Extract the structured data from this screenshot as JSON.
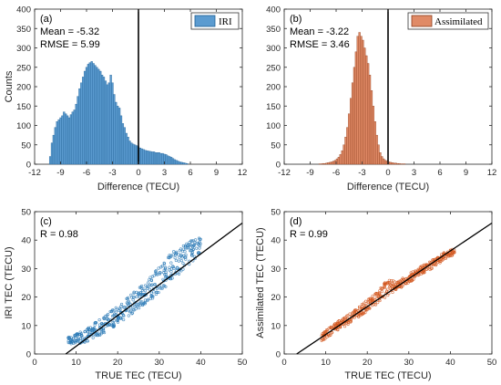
{
  "chart_data": [
    {
      "id": "a",
      "type": "bar",
      "panel_label": "(a)",
      "stats": [
        "Mean = -5.32",
        "RMSE = 5.99"
      ],
      "legend": "IRI",
      "legend_placement": "top-right",
      "color": "#5b9bd0",
      "edge_color": "#1f5f94",
      "xlabel": "Difference (TECU)",
      "ylabel": "Counts",
      "xlim": [
        -12,
        12
      ],
      "ylim": [
        0,
        400
      ],
      "xticks": [
        -12,
        -9,
        -6,
        -3,
        0,
        3,
        6,
        9,
        12
      ],
      "yticks": [
        0,
        50,
        100,
        150,
        200,
        250,
        300,
        350,
        400
      ],
      "bin_start": -10.3,
      "bin_width": 0.2,
      "values": [
        20,
        55,
        75,
        95,
        110,
        115,
        120,
        125,
        135,
        130,
        125,
        120,
        128,
        135,
        140,
        155,
        175,
        195,
        210,
        225,
        240,
        250,
        258,
        262,
        265,
        260,
        255,
        250,
        245,
        240,
        230,
        225,
        215,
        205,
        210,
        230,
        210,
        180,
        160,
        150,
        145,
        125,
        105,
        95,
        80,
        70,
        60,
        55,
        52,
        50,
        48,
        45,
        42,
        40,
        38,
        36,
        35,
        34,
        33,
        32,
        32,
        30,
        30,
        30,
        28,
        28,
        26,
        25,
        22,
        20,
        18,
        15,
        12,
        10,
        8,
        6,
        5,
        4,
        3,
        2
      ],
      "vline_x": 0,
      "grid": false
    },
    {
      "id": "b",
      "type": "bar",
      "panel_label": "(b)",
      "stats": [
        "Mean = -3.22",
        "RMSE = 3.46"
      ],
      "legend": "Assimilated",
      "legend_placement": "top-right",
      "color": "#e08a66",
      "edge_color": "#8c3c1c",
      "xlabel": "Difference (TECU)",
      "ylabel": "",
      "xlim": [
        -12,
        12
      ],
      "ylim": [
        0,
        400
      ],
      "xticks": [
        -12,
        -9,
        -6,
        -3,
        0,
        3,
        6,
        9,
        12
      ],
      "yticks": [
        0,
        50,
        100,
        150,
        200,
        250,
        300,
        350,
        400
      ],
      "bin_start": -8.0,
      "bin_width": 0.2,
      "values": [
        1,
        1,
        2,
        2,
        3,
        4,
        5,
        6,
        8,
        10,
        14,
        18,
        25,
        35,
        50,
        70,
        95,
        130,
        170,
        210,
        250,
        290,
        330,
        340,
        330,
        320,
        300,
        280,
        260,
        230,
        190,
        150,
        110,
        75,
        50,
        30,
        20,
        14,
        10,
        8,
        6,
        5,
        4,
        3,
        3,
        2,
        2,
        1,
        1,
        1
      ],
      "vline_x": 0,
      "grid": false
    },
    {
      "id": "c",
      "type": "scatter",
      "panel_label": "(c)",
      "stats": [
        "R = 0.98"
      ],
      "color": "#2878b5",
      "xlabel": "TRUE TEC (TECU)",
      "ylabel": "IRI TEC (TECU)",
      "xlim": [
        0,
        50
      ],
      "ylim": [
        0,
        50
      ],
      "xticks": [
        0,
        10,
        20,
        30,
        40,
        50
      ],
      "yticks": [
        0,
        10,
        20,
        30,
        40,
        50
      ],
      "fit_line": [
        [
          7.5,
          0
        ],
        [
          50,
          46
        ]
      ],
      "band": [
        [
          8,
          3.5,
          6.0
        ],
        [
          10,
          3.5,
          7.0
        ],
        [
          12,
          4.0,
          8.5
        ],
        [
          14,
          5.0,
          10.5
        ],
        [
          16,
          6.5,
          12.5
        ],
        [
          18,
          8.5,
          15.0
        ],
        [
          20,
          10.5,
          17.0
        ],
        [
          22,
          12.5,
          19.5
        ],
        [
          24,
          14.5,
          22.0
        ],
        [
          26,
          16.5,
          24.5
        ],
        [
          28,
          19.0,
          27.5
        ],
        [
          30,
          21.5,
          31.0
        ],
        [
          32,
          24.0,
          34.0
        ],
        [
          34,
          27.0,
          37.0
        ],
        [
          36,
          29.5,
          38.5
        ],
        [
          38,
          32.5,
          40.0
        ],
        [
          40,
          35.0,
          41.0
        ]
      ],
      "grid": false
    },
    {
      "id": "d",
      "type": "scatter",
      "panel_label": "(d)",
      "stats": [
        "R = 0.99"
      ],
      "color": "#d2571f",
      "xlabel": "TRUE TEC (TECU)",
      "ylabel": "Assimilated TEC (TECU)",
      "xlim": [
        0,
        50
      ],
      "ylim": [
        0,
        50
      ],
      "xticks": [
        0,
        10,
        20,
        30,
        40,
        50
      ],
      "yticks": [
        0,
        10,
        20,
        30,
        40,
        50
      ],
      "fit_line": [
        [
          3,
          0
        ],
        [
          50,
          46
        ]
      ],
      "band": [
        [
          9,
          4.5,
          7.0
        ],
        [
          11,
          6.5,
          9.5
        ],
        [
          13,
          8.5,
          11.5
        ],
        [
          15,
          10.0,
          13.5
        ],
        [
          17,
          12.0,
          15.5
        ],
        [
          19,
          14.0,
          18.0
        ],
        [
          21,
          16.0,
          20.5
        ],
        [
          23,
          18.5,
          23.0
        ],
        [
          25,
          20.5,
          26.5
        ],
        [
          27,
          22.5,
          25.5
        ],
        [
          29,
          24.0,
          27.0
        ],
        [
          31,
          26.0,
          29.0
        ],
        [
          33,
          28.0,
          31.0
        ],
        [
          35,
          29.5,
          32.5
        ],
        [
          37,
          31.5,
          34.5
        ],
        [
          39,
          33.5,
          36.5
        ],
        [
          41,
          35.0,
          37.0
        ]
      ],
      "grid": false
    }
  ]
}
